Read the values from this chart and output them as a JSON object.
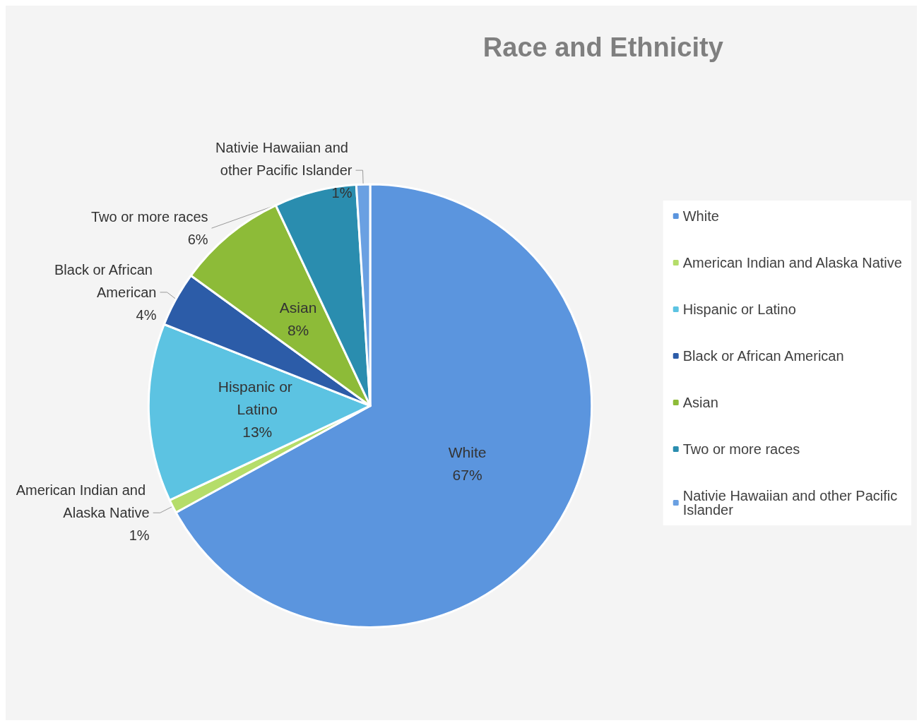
{
  "chart_data": {
    "type": "pie",
    "title": "Race and Ethnicity",
    "categories": [
      "White",
      "American Indian and Alaska Native",
      "Hispanic or Latino",
      "Black or African American",
      "Asian",
      "Two or more races",
      "Nativie Hawaiian and other Pacific Islander"
    ],
    "values": [
      67,
      1,
      13,
      4,
      8,
      6,
      1
    ],
    "value_labels": [
      "67%",
      "1%",
      "13%",
      "4%",
      "8%",
      "6%",
      "1%"
    ],
    "colors": [
      "#5b95de",
      "#b5dd6a",
      "#5cc3e2",
      "#2c5ca8",
      "#8dbb38",
      "#2a8daf",
      "#6aa0e2"
    ],
    "legend": "right"
  }
}
